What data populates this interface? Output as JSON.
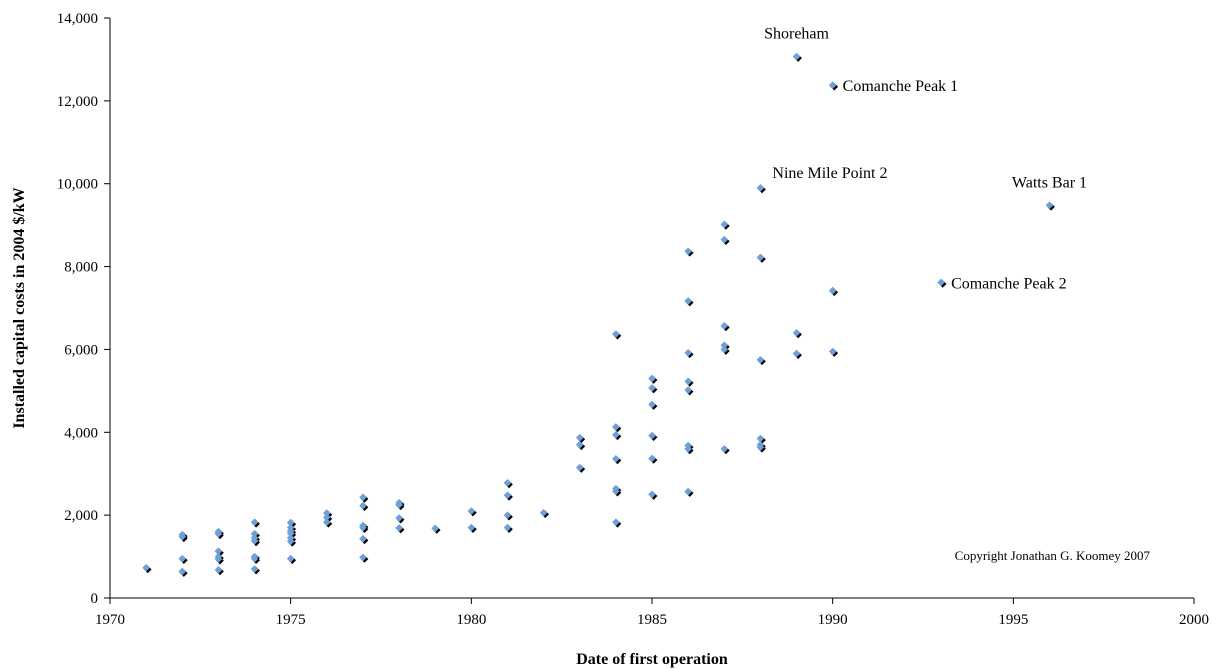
{
  "chart_data": {
    "type": "scatter",
    "xlabel": "Date of first operation",
    "ylabel": "Installed capital costs in 2004 $/kW",
    "xlim": [
      1970,
      2000
    ],
    "ylim": [
      0,
      14000
    ],
    "xticks": [
      1970,
      1975,
      1980,
      1985,
      1990,
      1995,
      2000
    ],
    "yticks": [
      0,
      2000,
      4000,
      6000,
      8000,
      10000,
      12000,
      14000
    ],
    "xtick_labels": [
      "1970",
      "1975",
      "1980",
      "1985",
      "1990",
      "1995",
      "2000"
    ],
    "ytick_labels": [
      "0",
      "2,000",
      "4,000",
      "6,000",
      "8,000",
      "10,000",
      "12,000",
      "14,000"
    ],
    "grid": false,
    "marker_color": "#6f9fd8",
    "marker_shadow_color": "#000000",
    "points": [
      {
        "x": 1971,
        "y": 730
      },
      {
        "x": 1972,
        "y": 1530
      },
      {
        "x": 1972,
        "y": 1480
      },
      {
        "x": 1972,
        "y": 950
      },
      {
        "x": 1972,
        "y": 640
      },
      {
        "x": 1973,
        "y": 1600
      },
      {
        "x": 1973,
        "y": 1550
      },
      {
        "x": 1973,
        "y": 1130
      },
      {
        "x": 1973,
        "y": 1000
      },
      {
        "x": 1973,
        "y": 940
      },
      {
        "x": 1973,
        "y": 680
      },
      {
        "x": 1974,
        "y": 1830
      },
      {
        "x": 1974,
        "y": 1550
      },
      {
        "x": 1974,
        "y": 1450
      },
      {
        "x": 1974,
        "y": 1380
      },
      {
        "x": 1974,
        "y": 1000
      },
      {
        "x": 1974,
        "y": 950
      },
      {
        "x": 1974,
        "y": 700
      },
      {
        "x": 1975,
        "y": 1820
      },
      {
        "x": 1975,
        "y": 1700
      },
      {
        "x": 1975,
        "y": 1620
      },
      {
        "x": 1975,
        "y": 1560
      },
      {
        "x": 1975,
        "y": 1450
      },
      {
        "x": 1975,
        "y": 1370
      },
      {
        "x": 1975,
        "y": 950
      },
      {
        "x": 1976,
        "y": 2050
      },
      {
        "x": 1976,
        "y": 1950
      },
      {
        "x": 1976,
        "y": 1830
      },
      {
        "x": 1977,
        "y": 2430
      },
      {
        "x": 1977,
        "y": 2230
      },
      {
        "x": 1977,
        "y": 1750
      },
      {
        "x": 1977,
        "y": 1700
      },
      {
        "x": 1977,
        "y": 1430
      },
      {
        "x": 1977,
        "y": 980
      },
      {
        "x": 1978,
        "y": 2300
      },
      {
        "x": 1978,
        "y": 2250
      },
      {
        "x": 1978,
        "y": 1930
      },
      {
        "x": 1978,
        "y": 1690
      },
      {
        "x": 1979,
        "y": 1680
      },
      {
        "x": 1980,
        "y": 2100
      },
      {
        "x": 1980,
        "y": 1700
      },
      {
        "x": 1981,
        "y": 2780
      },
      {
        "x": 1981,
        "y": 2480
      },
      {
        "x": 1981,
        "y": 2000
      },
      {
        "x": 1981,
        "y": 1700
      },
      {
        "x": 1982,
        "y": 2060
      },
      {
        "x": 1983,
        "y": 3870
      },
      {
        "x": 1983,
        "y": 3700
      },
      {
        "x": 1983,
        "y": 3150
      },
      {
        "x": 1984,
        "y": 6370
      },
      {
        "x": 1984,
        "y": 4130
      },
      {
        "x": 1984,
        "y": 3940
      },
      {
        "x": 1984,
        "y": 3360
      },
      {
        "x": 1984,
        "y": 2640
      },
      {
        "x": 1984,
        "y": 2580
      },
      {
        "x": 1984,
        "y": 1830
      },
      {
        "x": 1985,
        "y": 5300
      },
      {
        "x": 1985,
        "y": 5070
      },
      {
        "x": 1985,
        "y": 4670
      },
      {
        "x": 1985,
        "y": 3920
      },
      {
        "x": 1985,
        "y": 3370
      },
      {
        "x": 1985,
        "y": 2500
      },
      {
        "x": 1986,
        "y": 8370
      },
      {
        "x": 1986,
        "y": 7170
      },
      {
        "x": 1986,
        "y": 5920
      },
      {
        "x": 1986,
        "y": 5230
      },
      {
        "x": 1986,
        "y": 5020
      },
      {
        "x": 1986,
        "y": 3680
      },
      {
        "x": 1986,
        "y": 3600
      },
      {
        "x": 1986,
        "y": 2570
      },
      {
        "x": 1987,
        "y": 9020
      },
      {
        "x": 1987,
        "y": 8650
      },
      {
        "x": 1987,
        "y": 6570
      },
      {
        "x": 1987,
        "y": 6100
      },
      {
        "x": 1987,
        "y": 6000
      },
      {
        "x": 1987,
        "y": 3600
      },
      {
        "x": 1988,
        "y": 9900
      },
      {
        "x": 1988,
        "y": 8220
      },
      {
        "x": 1988,
        "y": 5750
      },
      {
        "x": 1988,
        "y": 3850
      },
      {
        "x": 1988,
        "y": 3700
      },
      {
        "x": 1988,
        "y": 3640
      },
      {
        "x": 1989,
        "y": 13070
      },
      {
        "x": 1989,
        "y": 6400
      },
      {
        "x": 1989,
        "y": 5900
      },
      {
        "x": 1990,
        "y": 12380
      },
      {
        "x": 1990,
        "y": 7420
      },
      {
        "x": 1990,
        "y": 5950
      },
      {
        "x": 1993,
        "y": 7620
      },
      {
        "x": 1996,
        "y": 9480
      }
    ],
    "annotations": [
      {
        "text": "Shoreham",
        "x": 1989,
        "y": 13070,
        "placement": "above"
      },
      {
        "text": "Comanche Peak 1",
        "x": 1990,
        "y": 12380,
        "placement": "right"
      },
      {
        "text": "Nine Mile Point 2",
        "x": 1988,
        "y": 9900,
        "placement": "above-right"
      },
      {
        "text": "Watts Bar 1",
        "x": 1996,
        "y": 9480,
        "placement": "above"
      },
      {
        "text": "Comanche Peak 2",
        "x": 1993,
        "y": 7620,
        "placement": "right"
      }
    ],
    "note": "Copyright Jonathan G. Koomey 2007"
  }
}
